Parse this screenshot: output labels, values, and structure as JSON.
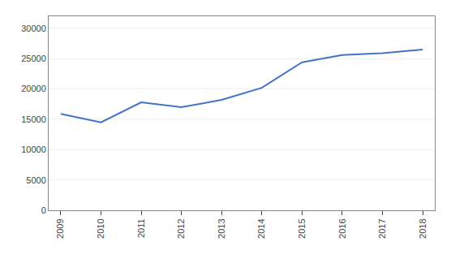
{
  "chart_data": {
    "type": "line",
    "x": [
      2009,
      2010,
      2011,
      2012,
      2013,
      2014,
      2015,
      2016,
      2017,
      2018
    ],
    "values": [
      15900,
      14500,
      17800,
      17000,
      18200,
      20200,
      24400,
      25600,
      25900,
      26500
    ],
    "color": "#4472C4",
    "xlim": [
      2008.7,
      2018.3
    ],
    "xticks": [
      2009,
      2010,
      2011,
      2012,
      2013,
      2014,
      2015,
      2016,
      2017,
      2018
    ],
    "ylim": [
      0,
      32000
    ],
    "yticks": [
      0,
      5000,
      10000,
      15000,
      20000,
      25000,
      30000
    ],
    "grid": true
  }
}
